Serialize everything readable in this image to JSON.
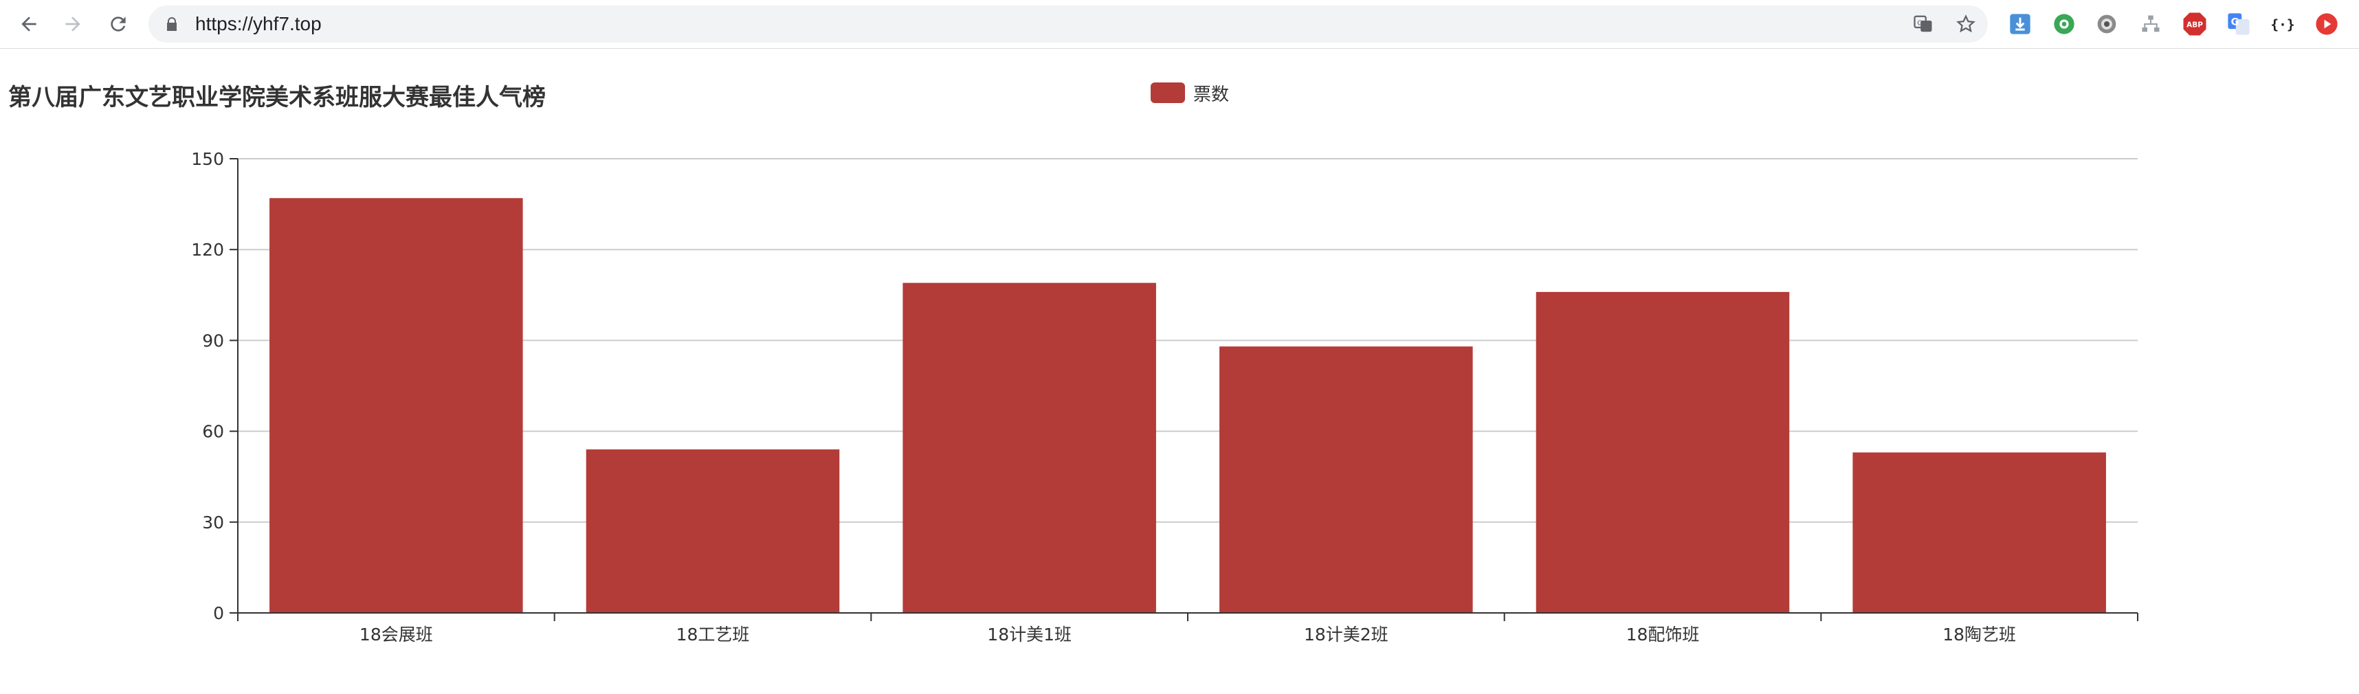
{
  "browser": {
    "url": "https://yhf7.top",
    "extensions": [
      "download-icon",
      "green-circle-extension-icon",
      "gear-extension-icon",
      "sitemap-icon",
      "adblock-icon",
      "google-translate-icon",
      "json-viewer-icon",
      "red-play-icon"
    ],
    "adblock_label": "ABP",
    "json_label": "{·}"
  },
  "colors": {
    "bar": "#b33c38",
    "axis": "#333333",
    "grid": "#cccccc"
  },
  "chart_data": {
    "type": "bar",
    "title": "第八届广东文艺职业学院美术系班服大赛最佳人气榜",
    "legend": [
      "票数"
    ],
    "legend_position": "top-center",
    "categories": [
      "18会展班",
      "18工艺班",
      "18计美1班",
      "18计美2班",
      "18配饰班",
      "18陶艺班"
    ],
    "series": [
      {
        "name": "票数",
        "values": [
          137,
          54,
          109,
          88,
          106,
          53
        ]
      }
    ],
    "ylim": [
      0,
      150
    ],
    "yticks": [
      0,
      30,
      60,
      90,
      120,
      150
    ],
    "xlabel": "",
    "ylabel": "",
    "grid": true
  }
}
